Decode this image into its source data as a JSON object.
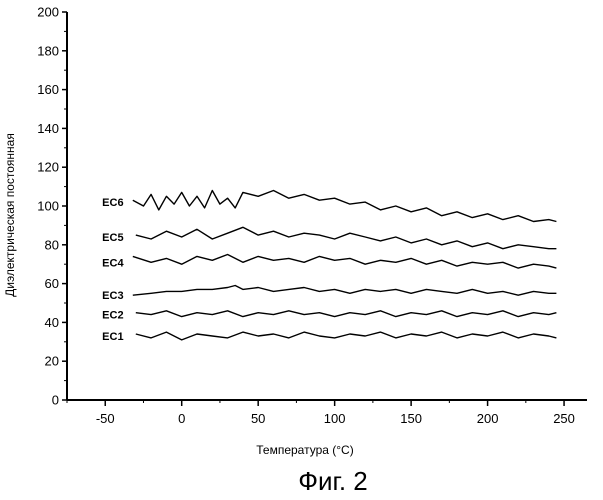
{
  "chart_data": {
    "type": "line",
    "xlabel": "Температура (°C)",
    "ylabel": "Диэлектрическая постоянная",
    "xlim": [
      -75,
      265
    ],
    "ylim": [
      0,
      200
    ],
    "x_ticks": [
      -50,
      0,
      50,
      100,
      150,
      200,
      250
    ],
    "x_tick_labels": [
      "-50",
      "0",
      "50",
      "100",
      "150",
      "200",
      "250"
    ],
    "y_ticks": [
      0,
      20,
      40,
      60,
      80,
      100,
      120,
      140,
      160,
      180,
      200
    ],
    "y_tick_labels": [
      "0",
      "20",
      "40",
      "60",
      "80",
      "100",
      "120",
      "140",
      "160",
      "180",
      "200"
    ],
    "grid": false,
    "series": [
      {
        "name": "EC1",
        "x": [
          -30,
          -20,
          -10,
          0,
          10,
          20,
          30,
          40,
          50,
          60,
          70,
          80,
          90,
          100,
          110,
          120,
          130,
          140,
          150,
          160,
          170,
          180,
          190,
          200,
          210,
          220,
          230,
          240,
          245
        ],
        "y": [
          34,
          32,
          35,
          31,
          34,
          33,
          32,
          35,
          33,
          34,
          32,
          35,
          33,
          32,
          34,
          33,
          35,
          32,
          34,
          33,
          35,
          32,
          34,
          33,
          35,
          32,
          34,
          33,
          32
        ]
      },
      {
        "name": "EC2",
        "x": [
          -30,
          -20,
          -10,
          0,
          10,
          20,
          30,
          40,
          50,
          60,
          70,
          80,
          90,
          100,
          110,
          120,
          130,
          140,
          150,
          160,
          170,
          180,
          190,
          200,
          210,
          220,
          230,
          240,
          245
        ],
        "y": [
          45,
          44,
          46,
          43,
          45,
          44,
          46,
          43,
          45,
          44,
          46,
          44,
          45,
          43,
          45,
          44,
          46,
          43,
          45,
          44,
          46,
          43,
          45,
          44,
          46,
          43,
          45,
          44,
          45
        ]
      },
      {
        "name": "EC3",
        "x": [
          -32,
          -20,
          -10,
          0,
          10,
          20,
          30,
          35,
          40,
          50,
          60,
          70,
          80,
          90,
          100,
          110,
          120,
          130,
          140,
          150,
          160,
          170,
          180,
          190,
          200,
          210,
          220,
          230,
          240,
          245
        ],
        "y": [
          54,
          55,
          56,
          56,
          57,
          57,
          58,
          59,
          57,
          58,
          56,
          57,
          58,
          56,
          57,
          55,
          57,
          56,
          57,
          55,
          57,
          56,
          55,
          57,
          55,
          56,
          54,
          56,
          55,
          55
        ]
      },
      {
        "name": "EC4",
        "x": [
          -32,
          -20,
          -10,
          0,
          10,
          20,
          30,
          40,
          50,
          60,
          70,
          80,
          90,
          100,
          110,
          120,
          130,
          140,
          150,
          160,
          170,
          180,
          190,
          200,
          210,
          220,
          230,
          240,
          245
        ],
        "y": [
          74,
          71,
          73,
          70,
          74,
          72,
          75,
          71,
          74,
          72,
          73,
          71,
          74,
          72,
          73,
          70,
          72,
          71,
          73,
          70,
          72,
          69,
          71,
          70,
          71,
          68,
          70,
          69,
          68
        ]
      },
      {
        "name": "EC5",
        "x": [
          -30,
          -20,
          -10,
          0,
          10,
          20,
          30,
          40,
          50,
          60,
          70,
          80,
          90,
          100,
          110,
          120,
          130,
          140,
          150,
          160,
          170,
          180,
          190,
          200,
          210,
          220,
          230,
          240,
          245
        ],
        "y": [
          85,
          83,
          87,
          84,
          88,
          83,
          86,
          89,
          85,
          87,
          84,
          86,
          85,
          83,
          86,
          84,
          82,
          84,
          81,
          83,
          80,
          82,
          79,
          81,
          78,
          80,
          79,
          78,
          78
        ]
      },
      {
        "name": "EC6",
        "x": [
          -32,
          -25,
          -20,
          -15,
          -10,
          -5,
          0,
          5,
          10,
          15,
          20,
          25,
          30,
          35,
          40,
          50,
          60,
          70,
          80,
          90,
          100,
          110,
          120,
          130,
          140,
          150,
          160,
          170,
          180,
          190,
          200,
          210,
          220,
          230,
          240,
          245
        ],
        "y": [
          103,
          100,
          106,
          98,
          105,
          101,
          107,
          100,
          105,
          99,
          108,
          101,
          104,
          99,
          107,
          105,
          108,
          104,
          106,
          103,
          104,
          101,
          102,
          98,
          100,
          97,
          99,
          95,
          97,
          94,
          96,
          93,
          95,
          92,
          93,
          92
        ]
      }
    ],
    "series_label_anchor_x": -38,
    "series_label_anchor_y": [
      33,
      44,
      54,
      71,
      84,
      102
    ]
  },
  "figure_caption": "Фиг. 2"
}
